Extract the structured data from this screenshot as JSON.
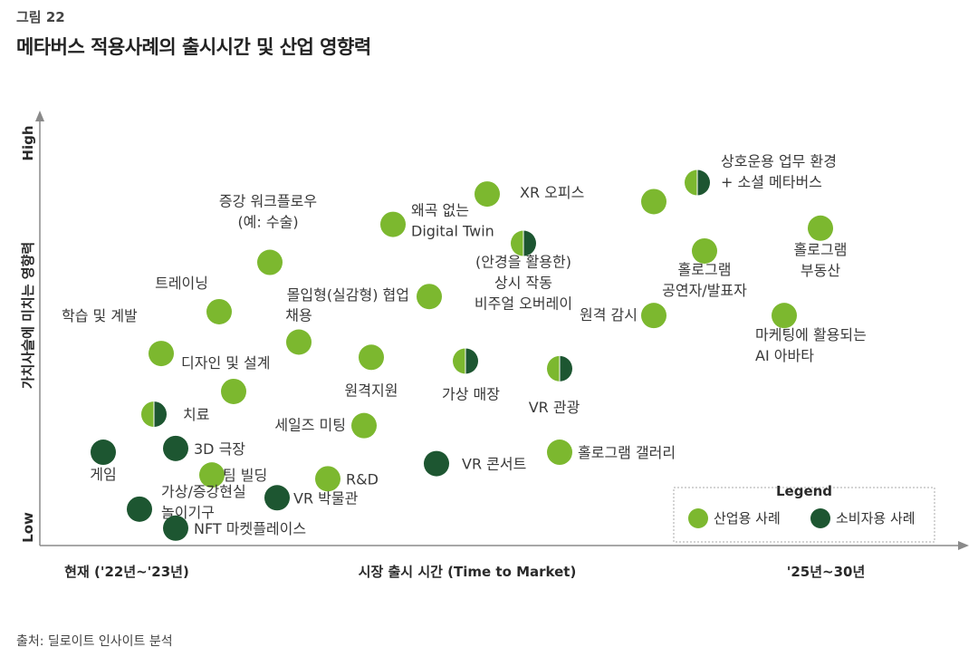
{
  "figure": {
    "number": "그림 22",
    "title": "메타버스 적용사례의 출시시간 및 산업 영향력",
    "source": "출처: 딜로이트 인사이트 분석"
  },
  "colors": {
    "industry": "#7cb82f",
    "consumer": "#1d5631",
    "axis": "#8a8a8a"
  },
  "chart_data": {
    "type": "scatter",
    "xlabel": "시장 출시 시간 (Time to Market)",
    "x_ticks": [
      "현재 ('22년~'23년)",
      "'25년~30년"
    ],
    "ylabel": "가치사슬에 미치는 영향력",
    "y_ticks": [
      "Low",
      "High"
    ],
    "xlim": [
      0,
      1
    ],
    "ylim": [
      0,
      1
    ],
    "grid": false,
    "legend": {
      "title": "Legend",
      "position": "bottom-right",
      "entries": [
        {
          "label": "산업용 사례",
          "type": "industry"
        },
        {
          "label": "소비자용 사례",
          "type": "consumer"
        }
      ]
    },
    "points": [
      {
        "label": [
          "XR 오피스"
        ],
        "x": 0.57,
        "y": 0.89,
        "type": "industry"
      },
      {
        "label": [
          "상호운용 업무 환경",
          "+ 소셜 메타버스"
        ],
        "x": 0.86,
        "y": 0.92,
        "type": "mixed"
      },
      {
        "label": [],
        "x": 0.8,
        "y": 0.87,
        "type": "industry"
      },
      {
        "label": [
          "증강 워크플로우",
          "(예: 수술)"
        ],
        "x": 0.27,
        "y": 0.71,
        "type": "industry"
      },
      {
        "label": [
          "왜곡 없는",
          "Digital Twin"
        ],
        "x": 0.44,
        "y": 0.81,
        "type": "industry"
      },
      {
        "label": [
          "(안경을 활용한)",
          "상시 작동",
          "비주얼 오버레이"
        ],
        "x": 0.62,
        "y": 0.76,
        "type": "mixed"
      },
      {
        "label": [
          "홀로그램",
          "공연자/발표자"
        ],
        "x": 0.87,
        "y": 0.74,
        "type": "industry"
      },
      {
        "label": [
          "홀로그램",
          "부동산"
        ],
        "x": 1.03,
        "y": 0.8,
        "type": "industry"
      },
      {
        "label": [
          "트레이닝"
        ],
        "x": 0.2,
        "y": 0.58,
        "type": "industry"
      },
      {
        "label": [
          "몰입형(실감형) 협업"
        ],
        "x": 0.49,
        "y": 0.62,
        "type": "industry"
      },
      {
        "label": [
          "원격 감시"
        ],
        "x": 0.8,
        "y": 0.57,
        "type": "industry"
      },
      {
        "label": [
          "마케팅에 활용되는",
          "AI 아바타"
        ],
        "x": 0.98,
        "y": 0.57,
        "type": "industry"
      },
      {
        "label": [
          "학습 및 계발"
        ],
        "x": 0.12,
        "y": 0.47,
        "type": "industry"
      },
      {
        "label": [
          "채용"
        ],
        "x": 0.31,
        "y": 0.5,
        "type": "industry"
      },
      {
        "label": [
          "원격지원"
        ],
        "x": 0.41,
        "y": 0.46,
        "type": "industry"
      },
      {
        "label": [
          "가상 매장"
        ],
        "x": 0.54,
        "y": 0.45,
        "type": "mixed"
      },
      {
        "label": [
          "VR 관광"
        ],
        "x": 0.67,
        "y": 0.43,
        "type": "mixed"
      },
      {
        "label": [
          "디자인 및 설계"
        ],
        "x": 0.22,
        "y": 0.37,
        "type": "industry"
      },
      {
        "label": [
          "치료"
        ],
        "x": 0.11,
        "y": 0.31,
        "type": "mixed"
      },
      {
        "label": [
          "세일즈 미팅"
        ],
        "x": 0.4,
        "y": 0.28,
        "type": "industry"
      },
      {
        "label": [
          "게임"
        ],
        "x": 0.04,
        "y": 0.21,
        "type": "consumer"
      },
      {
        "label": [
          "3D 극장"
        ],
        "x": 0.14,
        "y": 0.22,
        "type": "consumer"
      },
      {
        "label": [
          "팀 빌딩"
        ],
        "x": 0.19,
        "y": 0.15,
        "type": "industry"
      },
      {
        "label": [
          "R&D"
        ],
        "x": 0.35,
        "y": 0.14,
        "type": "industry"
      },
      {
        "label": [
          "VR 콘서트"
        ],
        "x": 0.5,
        "y": 0.18,
        "type": "consumer"
      },
      {
        "label": [
          "홀로그램 갤러리"
        ],
        "x": 0.67,
        "y": 0.21,
        "type": "industry"
      },
      {
        "label": [
          "가상/증강현실",
          "놀이기구"
        ],
        "x": 0.09,
        "y": 0.06,
        "type": "consumer"
      },
      {
        "label": [
          "VR 박물관"
        ],
        "x": 0.28,
        "y": 0.09,
        "type": "consumer"
      },
      {
        "label": [
          "NFT 마켓플레이스"
        ],
        "x": 0.14,
        "y": 0.01,
        "type": "consumer"
      }
    ]
  }
}
